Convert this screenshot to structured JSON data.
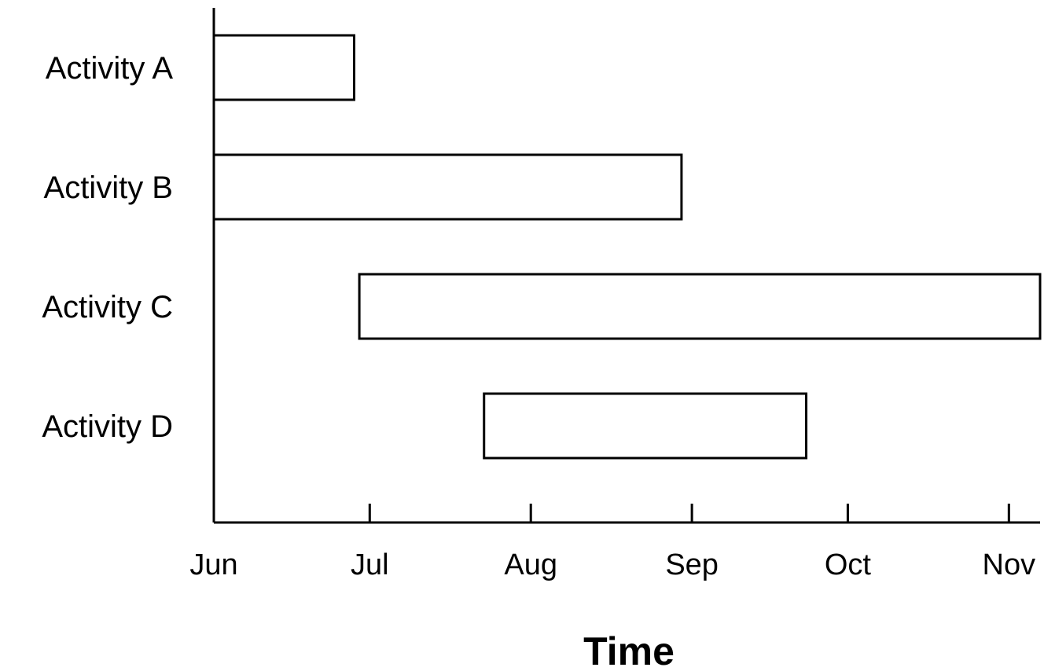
{
  "chart_data": {
    "type": "bar",
    "orientation": "horizontal",
    "subtype": "gantt",
    "categories": [
      "Activity A",
      "Activity B",
      "Activity C",
      "Activity D"
    ],
    "tasks": [
      {
        "label": "Activity A",
        "start": "2000-06-01",
        "end": "2000-06-28"
      },
      {
        "label": "Activity B",
        "start": "2000-06-01",
        "end": "2000-08-30"
      },
      {
        "label": "Activity C",
        "start": "2000-06-29",
        "end": "2000-11-07"
      },
      {
        "label": "Activity D",
        "start": "2000-07-23",
        "end": "2000-09-23"
      }
    ],
    "x_ticks": [
      "Jun",
      "Jul",
      "Aug",
      "Sep",
      "Oct",
      "Nov"
    ],
    "x_tick_values": [
      "2000-06-01",
      "2000-07-01",
      "2000-08-01",
      "2000-09-01",
      "2000-10-01",
      "2000-11-01"
    ],
    "xlim": [
      "2000-06-01",
      "2000-11-07"
    ],
    "title": "",
    "xlabel": "Time",
    "ylabel": "",
    "grid": false,
    "legend": "none",
    "colors": {
      "bar_fill": "#ffffff",
      "bar_stroke": "#000000",
      "axis": "#000000",
      "text": "#000000"
    }
  }
}
